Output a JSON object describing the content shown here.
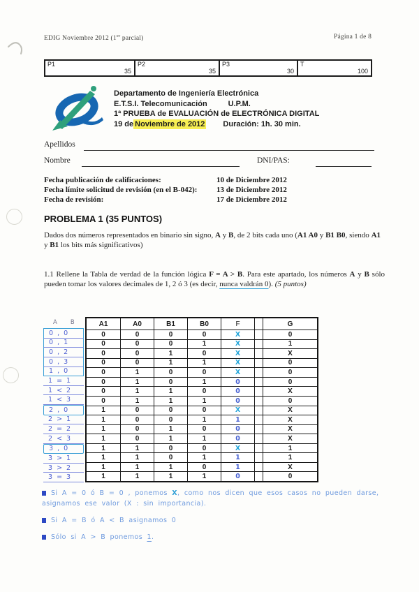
{
  "page_header": {
    "left_segments": [
      {
        "t": "EDIG    Noviembre 2012 (1"
      },
      {
        "t": "er",
        "sup": 1
      },
      {
        "t": " parcial)"
      }
    ],
    "right": "Página 1 de 8"
  },
  "score_table": {
    "cells": [
      {
        "label": "P1",
        "value": "35"
      },
      {
        "label": "P2",
        "value": "35"
      },
      {
        "label": "P3",
        "value": "30"
      },
      {
        "label": "T",
        "value": "100"
      }
    ]
  },
  "letterhead": {
    "dept": "Departamento de Ingeniería Electrónica",
    "school": "E.T.S.I. Telecomunicación",
    "univ": "U.P.M.",
    "exam": "1ª PRUEBA de EVALUACIÓN de ELECTRÓNICA DIGITAL",
    "date_prefix": "19 de ",
    "date_highlight": "Noviembre de 2012",
    "duration_label": "Duración:  1h. 30 min.",
    "logo_blue": "#1767b2",
    "logo_green": "#2fa07c",
    "highlight_color": "#f8ef53"
  },
  "student": {
    "surname_label": "Apellidos",
    "name_label": "Nombre",
    "id_label": "DNI/PAS:"
  },
  "dates": [
    {
      "label": "Fecha publicación de calificaciones:",
      "value": "10 de Diciembre 2012"
    },
    {
      "label": "Fecha límite solicitud de revisión (en el B-042):",
      "value": "13 de Diciembre 2012"
    },
    {
      "label": "Fecha de revisión:",
      "value": "17 de Diciembre 2012"
    }
  ],
  "problem1": {
    "title": "PROBLEMA 1 (35 PUNTOS)",
    "intro_segments": [
      {
        "t": "Dados dos números representados en binario sin signo, "
      },
      {
        "t": "A",
        "b": 1
      },
      {
        "t": " y "
      },
      {
        "t": "B",
        "b": 1
      },
      {
        "t": ",  de 2 bits cada uno ("
      },
      {
        "t": "A1 A0",
        "b": 1
      },
      {
        "t": " y "
      },
      {
        "t": "B1 B0",
        "b": 1
      },
      {
        "t": ", siendo "
      },
      {
        "t": "A1",
        "b": 1
      },
      {
        "t": " y "
      },
      {
        "t": "B1",
        "b": 1
      },
      {
        "t": " los bits más significativos)"
      }
    ],
    "q11_segments": [
      {
        "t": "1.1  Rellene la Tabla de verdad de la función lógica "
      },
      {
        "t": "F = A > B",
        "b": 1
      },
      {
        "t": ".  Para este apartado, los números "
      },
      {
        "t": "A",
        "b": 1
      },
      {
        "t": " y "
      },
      {
        "t": "B",
        "b": 1
      },
      {
        "t": " sólo pueden tomar los valores decimales de 1, 2 ó 3 (es decir, "
      },
      {
        "t": "nunca valdrán 0",
        "u": 1
      },
      {
        "t": ").  "
      },
      {
        "t": "(5 puntos)",
        "i": 1
      }
    ]
  },
  "truth_table": {
    "hw_headers": [
      "A",
      "B"
    ],
    "headers": [
      "A1",
      "A0",
      "B1",
      "B0",
      "F",
      "",
      "G"
    ],
    "ink_cyan": "#25a6da",
    "ink_blue": "#4660d2",
    "rows": [
      {
        "hw": "0 , 0",
        "bits": [
          "0",
          "0",
          "0",
          "0"
        ],
        "f": "X",
        "g": "0",
        "frame": "top"
      },
      {
        "hw": "0 , 1",
        "bits": [
          "0",
          "0",
          "0",
          "1"
        ],
        "f": "X",
        "g": "1",
        "frame": "mid"
      },
      {
        "hw": "0 , 2",
        "bits": [
          "0",
          "0",
          "1",
          "0"
        ],
        "f": "X",
        "g": "X",
        "frame": "mid"
      },
      {
        "hw": "0 , 3",
        "bits": [
          "0",
          "0",
          "1",
          "1"
        ],
        "f": "X",
        "g": "0",
        "frame": "mid"
      },
      {
        "hw": "1 , 0",
        "bits": [
          "0",
          "1",
          "0",
          "0"
        ],
        "f": "X",
        "g": "0",
        "frame": "bottom"
      },
      {
        "hw": "1 = 1",
        "bits": [
          "0",
          "1",
          "0",
          "1"
        ],
        "f": "0",
        "g": "0",
        "frame": ""
      },
      {
        "hw": "1 < 2",
        "bits": [
          "0",
          "1",
          "1",
          "0"
        ],
        "f": "0",
        "g": "X",
        "frame": ""
      },
      {
        "hw": "1 < 3",
        "bits": [
          "0",
          "1",
          "1",
          "1"
        ],
        "f": "0",
        "g": "0",
        "frame": ""
      },
      {
        "hw": "2 , 0",
        "bits": [
          "1",
          "0",
          "0",
          "0"
        ],
        "f": "X",
        "g": "X",
        "frame": "solo"
      },
      {
        "hw": "2 > 1",
        "bits": [
          "1",
          "0",
          "0",
          "1"
        ],
        "f": "1",
        "g": "X",
        "frame": ""
      },
      {
        "hw": "2 = 2",
        "bits": [
          "1",
          "0",
          "1",
          "0"
        ],
        "f": "0",
        "g": "X",
        "frame": ""
      },
      {
        "hw": "2 < 3",
        "bits": [
          "1",
          "0",
          "1",
          "1"
        ],
        "f": "0",
        "g": "X",
        "frame": ""
      },
      {
        "hw": "3 , 0",
        "bits": [
          "1",
          "1",
          "0",
          "0"
        ],
        "f": "X",
        "g": "1",
        "frame": "solo"
      },
      {
        "hw": "3 > 1",
        "bits": [
          "1",
          "1",
          "0",
          "1"
        ],
        "f": "1",
        "g": "1",
        "frame": ""
      },
      {
        "hw": "3 > 2",
        "bits": [
          "1",
          "1",
          "1",
          "0"
        ],
        "f": "1",
        "g": "X",
        "frame": ""
      },
      {
        "hw": "3 = 3",
        "bits": [
          "1",
          "1",
          "1",
          "1"
        ],
        "f": "0",
        "g": "0",
        "frame": ""
      }
    ]
  },
  "notes": [
    {
      "segments": [
        {
          "t": "Si  A = 0  ó  B = 0 ,  ponemos  "
        },
        {
          "t": "X",
          "b": 1
        },
        {
          "t": ",  como nos dicen que esos casos no pueden darse,  asignamos ese valor  (X :  sin  importancia)."
        }
      ]
    },
    {
      "segments": [
        {
          "t": "Si  A = B  ó  A < B  asignamos  0"
        }
      ]
    },
    {
      "segments": [
        {
          "t": "Sólo  si  A > B  ponemos  "
        },
        {
          "t": "1",
          "u": 1
        },
        {
          "t": "."
        }
      ]
    }
  ]
}
